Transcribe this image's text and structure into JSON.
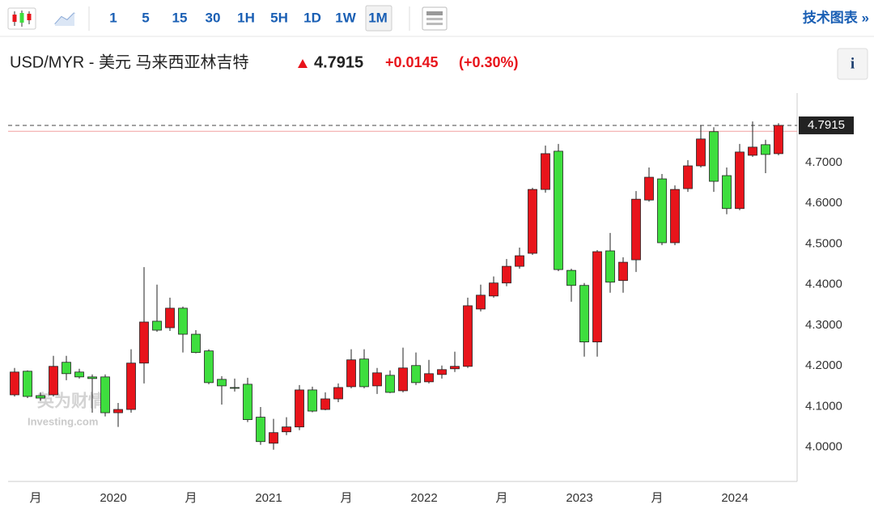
{
  "toolbar": {
    "intervals": [
      "1",
      "5",
      "15",
      "30",
      "1H",
      "5H",
      "1D",
      "1W",
      "1M"
    ],
    "technical_link": "技术图表 »",
    "info": "i"
  },
  "header": {
    "symbol": "USD/MYR - 美元 马来西亚林吉特",
    "change": "+0.0145",
    "change_pct": "(+0.30%)"
  },
  "watermark": {
    "cn": "英为财情",
    "en": "Investing.com"
  },
  "chart_data": {
    "type": "candlestick",
    "categories": [
      null,
      "月",
      null,
      null,
      null,
      null,
      null,
      "2020",
      null,
      null,
      null,
      null,
      null,
      "月",
      null,
      null,
      null,
      null,
      null,
      "2021",
      null,
      null,
      null,
      null,
      null,
      "月",
      null,
      null,
      null,
      null,
      null,
      "2022",
      null,
      null,
      null,
      null,
      null,
      "月",
      null,
      null,
      null,
      null,
      null,
      "2023",
      null,
      null,
      null,
      null,
      null,
      "月",
      null,
      null,
      null,
      null,
      null,
      "2024",
      null,
      null,
      null,
      null
    ],
    "open": [
      4.129,
      4.187,
      4.127,
      4.129,
      4.209,
      4.185,
      4.173,
      4.173,
      4.085,
      4.093,
      4.207,
      4.31,
      4.294,
      4.342,
      4.278,
      4.237,
      4.167,
      4.147,
      4.155,
      4.074,
      4.01,
      4.038,
      4.05,
      4.141,
      4.093,
      4.119,
      4.149,
      4.217,
      4.151,
      4.177,
      4.139,
      4.201,
      4.161,
      4.179,
      4.193,
      4.199,
      4.34,
      4.372,
      4.404,
      4.445,
      4.477,
      4.634,
      4.728,
      4.435,
      4.398,
      4.259,
      4.483,
      4.41,
      4.461,
      4.608,
      4.66,
      4.503,
      4.636,
      4.692,
      4.776,
      4.668,
      4.587,
      4.718,
      4.744,
      4.722
    ],
    "high": [
      4.195,
      4.189,
      4.135,
      4.225,
      4.225,
      4.193,
      4.179,
      4.179,
      4.109,
      4.241,
      4.443,
      4.4,
      4.368,
      4.346,
      4.288,
      4.241,
      4.175,
      4.169,
      4.171,
      4.099,
      4.07,
      4.074,
      4.153,
      4.149,
      4.135,
      4.157,
      4.241,
      4.241,
      4.195,
      4.189,
      4.245,
      4.233,
      4.215,
      4.201,
      4.235,
      4.368,
      4.4,
      4.42,
      4.463,
      4.491,
      4.638,
      4.742,
      4.746,
      4.439,
      4.404,
      4.485,
      4.527,
      4.467,
      4.63,
      4.688,
      4.672,
      4.644,
      4.706,
      4.791,
      4.787,
      4.688,
      4.746,
      4.801,
      4.756,
      4.797
    ],
    "low": [
      4.125,
      4.121,
      4.115,
      4.125,
      4.165,
      4.169,
      4.085,
      4.076,
      4.05,
      4.085,
      4.157,
      4.284,
      4.286,
      4.233,
      4.231,
      4.155,
      4.105,
      4.137,
      4.062,
      4.006,
      3.994,
      4.03,
      4.042,
      4.086,
      4.091,
      4.111,
      4.145,
      4.145,
      4.131,
      4.133,
      4.135,
      4.153,
      4.157,
      4.169,
      4.185,
      4.195,
      4.334,
      4.368,
      4.396,
      4.439,
      4.473,
      4.626,
      4.433,
      4.358,
      4.223,
      4.223,
      4.38,
      4.38,
      4.431,
      4.604,
      4.497,
      4.497,
      4.628,
      4.688,
      4.628,
      4.573,
      4.583,
      4.714,
      4.674,
      4.718
    ],
    "close": [
      4.185,
      4.125,
      4.121,
      4.199,
      4.181,
      4.173,
      4.169,
      4.085,
      4.093,
      4.207,
      4.308,
      4.288,
      4.342,
      4.278,
      4.233,
      4.159,
      4.151,
      4.145,
      4.068,
      4.014,
      4.036,
      4.05,
      4.141,
      4.089,
      4.119,
      4.147,
      4.215,
      4.149,
      4.183,
      4.135,
      4.195,
      4.159,
      4.181,
      4.191,
      4.199,
      4.348,
      4.374,
      4.404,
      4.445,
      4.471,
      4.634,
      4.722,
      4.437,
      4.398,
      4.259,
      4.481,
      4.406,
      4.455,
      4.61,
      4.664,
      4.503,
      4.634,
      4.692,
      4.758,
      4.654,
      4.587,
      4.726,
      4.738,
      4.72,
      4.7915
    ],
    "up_color": "#e8141b",
    "down_color": "#3ede3e",
    "previous_close": 4.777,
    "ylim": [
      3.916,
      4.871
    ],
    "yticks": [
      {
        "value": 4,
        "label": "4.0000"
      },
      {
        "value": 4.1,
        "label": "4.1000"
      },
      {
        "value": 4.2,
        "label": "4.2000"
      },
      {
        "value": 4.3,
        "label": "4.3000"
      },
      {
        "value": 4.4,
        "label": "4.4000"
      },
      {
        "value": 4.5,
        "label": "4.5000"
      },
      {
        "value": 4.6,
        "label": "4.6000"
      },
      {
        "value": 4.7,
        "label": "4.7000"
      }
    ],
    "grid": false
  }
}
